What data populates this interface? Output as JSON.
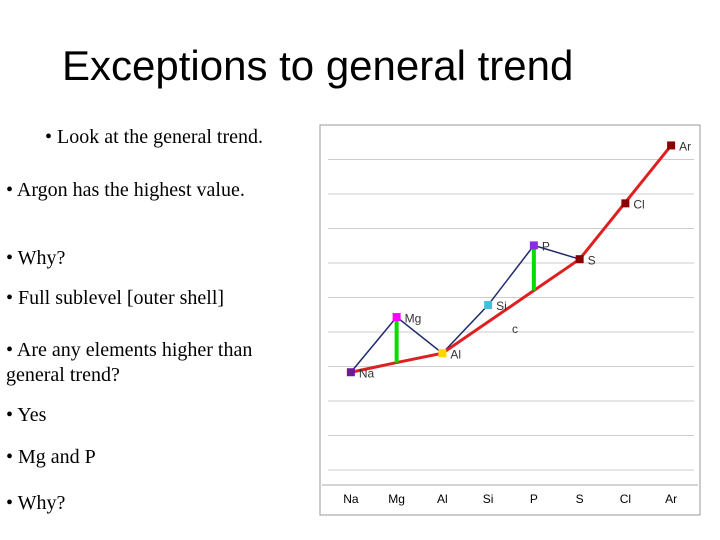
{
  "title": "Exceptions to general trend",
  "bullets": [
    "• Look at the general trend.",
    "• Argon has the highest value.",
    "• Why?",
    "• Full sublevel [outer shell]",
    "• Are any elements higher than general trend?",
    "• Yes",
    "• Mg and P",
    "• Why?"
  ],
  "chart_data": {
    "type": "line",
    "categories": [
      "Na",
      "Mg",
      "Al",
      "Si",
      "P",
      "S",
      "Cl",
      "Ar"
    ],
    "series": [
      {
        "color": "#1f2a6e",
        "values": [
          3.33,
          4.93,
          3.88,
          5.28,
          7.01,
          6.61,
          8.23,
          9.91
        ]
      },
      {
        "color": "#e02020",
        "values": [
          3.33,
          3.61,
          3.88,
          4.79,
          5.7,
          6.61,
          8.26,
          9.91
        ]
      }
    ],
    "marker_colors": [
      "#6a1b9a",
      "#ff00ff",
      "#ffd700",
      "#40c0e0",
      "#8a2be2",
      "#8b0000",
      "#8b0000",
      "#8b0000"
    ],
    "highlight_color": "#00e000",
    "highlight_indices": [
      1,
      4
    ],
    "annotation": "c",
    "ylim": [
      0,
      10.3
    ],
    "grid": true
  }
}
